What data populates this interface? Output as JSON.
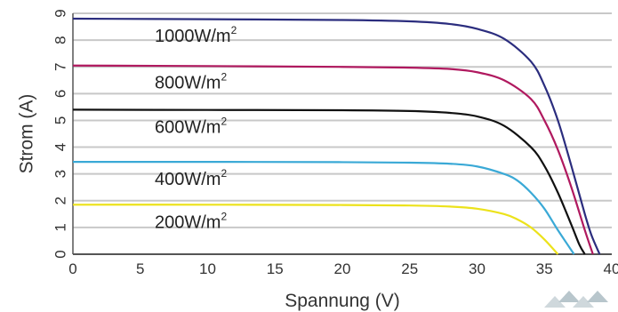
{
  "chart_data": {
    "type": "line",
    "title": "",
    "xlabel": "Spannung (V)",
    "ylabel": "Strom (A)",
    "xlim": [
      0,
      40
    ],
    "ylim": [
      0,
      9
    ],
    "xticks": [
      0,
      5,
      10,
      15,
      20,
      25,
      30,
      35,
      40
    ],
    "yticks": [
      0,
      1,
      2,
      3,
      4,
      5,
      6,
      7,
      8,
      9
    ],
    "grid": "horizontal",
    "legend": "inline labels",
    "series": [
      {
        "name": "1000W/m2",
        "label_text": "1000W/m",
        "label_sup": "2",
        "color": "#2b2d7e",
        "x": [
          0,
          10,
          20,
          25,
          28,
          30,
          32,
          34,
          35,
          36,
          37,
          38,
          38.5,
          39.1
        ],
        "y": [
          8.8,
          8.78,
          8.75,
          8.7,
          8.6,
          8.42,
          8.05,
          7.2,
          6.3,
          5.0,
          3.3,
          1.5,
          0.7,
          0
        ]
      },
      {
        "name": "800W/m2",
        "label_text": "800W/m",
        "label_sup": "2",
        "color": "#b0195f",
        "x": [
          0,
          10,
          20,
          25,
          28,
          30,
          32,
          34,
          35,
          36,
          37,
          38,
          38.6
        ],
        "y": [
          7.05,
          7.03,
          7.0,
          6.97,
          6.92,
          6.8,
          6.5,
          5.8,
          5.0,
          3.9,
          2.5,
          0.9,
          0
        ]
      },
      {
        "name": "600W/m2",
        "label_text": "600W/m",
        "label_sup": "2",
        "color": "#111111",
        "x": [
          0,
          10,
          20,
          25,
          28,
          30,
          32,
          34,
          35,
          36,
          37,
          37.6,
          38.0
        ],
        "y": [
          5.4,
          5.39,
          5.38,
          5.35,
          5.28,
          5.15,
          4.8,
          4.0,
          3.3,
          2.3,
          1.1,
          0.35,
          0
        ]
      },
      {
        "name": "400W/m2",
        "label_text": "400W/m",
        "label_sup": "2",
        "color": "#3aa9d6",
        "x": [
          0,
          10,
          20,
          25,
          28,
          30,
          32,
          33,
          34,
          35,
          36,
          37.2
        ],
        "y": [
          3.45,
          3.45,
          3.44,
          3.42,
          3.38,
          3.28,
          3.0,
          2.75,
          2.3,
          1.7,
          0.9,
          0
        ]
      },
      {
        "name": "200W/m2",
        "label_text": "200W/m",
        "label_sup": "2",
        "color": "#ece21b",
        "x": [
          0,
          10,
          20,
          25,
          28,
          30,
          32,
          33,
          34,
          35,
          36.0
        ],
        "y": [
          1.85,
          1.85,
          1.84,
          1.82,
          1.78,
          1.7,
          1.5,
          1.3,
          1.0,
          0.55,
          0
        ]
      }
    ]
  }
}
